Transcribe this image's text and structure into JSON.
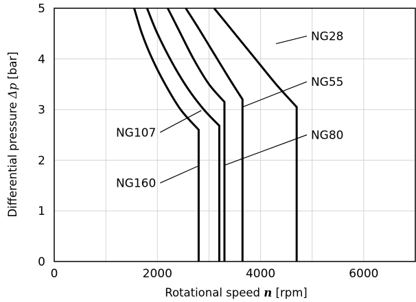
{
  "chart_data": {
    "type": "line",
    "xlabel": "Rotational speed",
    "xlabel_symbol": "n",
    "xlabel_unit": "[rpm]",
    "ylabel": "Differential pressure",
    "ylabel_symbol": "Δp",
    "ylabel_unit": "[bar]",
    "xlim": [
      0,
      7000
    ],
    "ylim": [
      0,
      5
    ],
    "xticks": [
      "0",
      "2000",
      "4000",
      "6000"
    ],
    "yticks": [
      "0",
      "1",
      "2",
      "3",
      "4",
      "5"
    ],
    "grid": true,
    "series": [
      {
        "name": "NG28",
        "points": [
          [
            3100,
            5
          ],
          [
            3500,
            4.5
          ],
          [
            3900,
            4.0
          ],
          [
            4300,
            3.5
          ],
          [
            4700,
            3.05
          ],
          [
            4700,
            0
          ]
        ]
      },
      {
        "name": "NG55",
        "points": [
          [
            2550,
            5
          ],
          [
            2800,
            4.6
          ],
          [
            3100,
            4.1
          ],
          [
            3400,
            3.6
          ],
          [
            3650,
            3.2
          ],
          [
            3650,
            0
          ]
        ]
      },
      {
        "name": "NG80",
        "points": [
          [
            2200,
            5
          ],
          [
            2400,
            4.6
          ],
          [
            2700,
            4.0
          ],
          [
            3000,
            3.5
          ],
          [
            3300,
            3.15
          ],
          [
            3300,
            0
          ]
        ]
      },
      {
        "name": "NG107",
        "points": [
          [
            1800,
            5
          ],
          [
            2000,
            4.5
          ],
          [
            2300,
            3.9
          ],
          [
            2600,
            3.4
          ],
          [
            2900,
            3.0
          ],
          [
            3200,
            2.68
          ],
          [
            3200,
            0
          ]
        ]
      },
      {
        "name": "NG160",
        "points": [
          [
            1550,
            5
          ],
          [
            1700,
            4.5
          ],
          [
            1900,
            4.0
          ],
          [
            2150,
            3.5
          ],
          [
            2450,
            3.0
          ],
          [
            2800,
            2.6
          ],
          [
            2800,
            0
          ]
        ]
      }
    ],
    "labels": [
      {
        "text": "NG28",
        "anchor": [
          4300,
          4.3
        ],
        "label_at": [
          4950,
          4.45
        ]
      },
      {
        "text": "NG55",
        "anchor": [
          3650,
          3.05
        ],
        "label_at": [
          4950,
          3.55
        ]
      },
      {
        "text": "NG80",
        "anchor": [
          3300,
          1.9
        ],
        "label_at": [
          4950,
          2.5
        ]
      },
      {
        "text": "NG107",
        "anchor": [
          2850,
          2.98
        ],
        "label_at": [
          2000,
          2.55
        ]
      },
      {
        "text": "NG160",
        "anchor": [
          2780,
          1.88
        ],
        "label_at": [
          2000,
          1.55
        ]
      }
    ]
  }
}
